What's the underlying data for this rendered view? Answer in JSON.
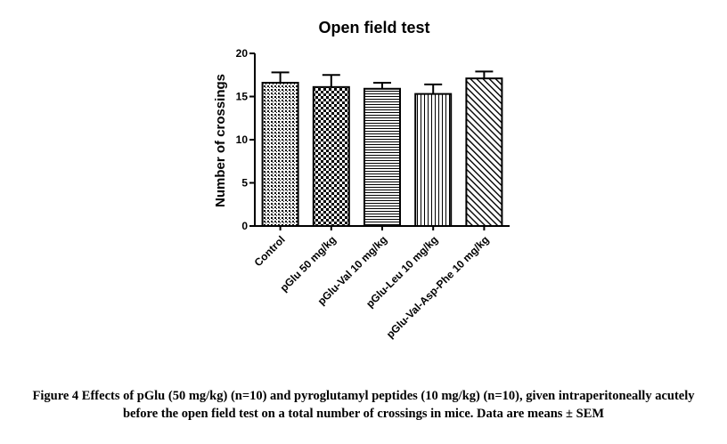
{
  "chart_data": {
    "type": "bar",
    "title": "Open field test",
    "xlabel": "",
    "ylabel": "Number of crossings",
    "ylim": [
      0,
      20
    ],
    "yticks": [
      0,
      5,
      10,
      15,
      20
    ],
    "categories": [
      "Control",
      "pGlu 50 mg/kg",
      "pGlu-Val 10 mg/kg",
      "pGlu-Leu 10 mg/kg",
      "pGlu-Val-Asp-Phe 10 mg/kg"
    ],
    "values": [
      16.6,
      16.1,
      15.9,
      15.3,
      17.1
    ],
    "errors": [
      1.2,
      1.4,
      0.7,
      1.1,
      0.8
    ],
    "patterns": [
      "fine-dots",
      "checkerboard",
      "horizontal-lines",
      "vertical-lines",
      "diagonal-lines"
    ],
    "grid": false,
    "legend": "none"
  },
  "caption": "Figure 4 Effects of pGlu (50 mg/kg) (n=10) and pyroglutamyl peptides (10 mg/kg) (n=10), given intraperitoneally acutely before the open field test on a total number of crossings in mice. Data are means ± SEM"
}
